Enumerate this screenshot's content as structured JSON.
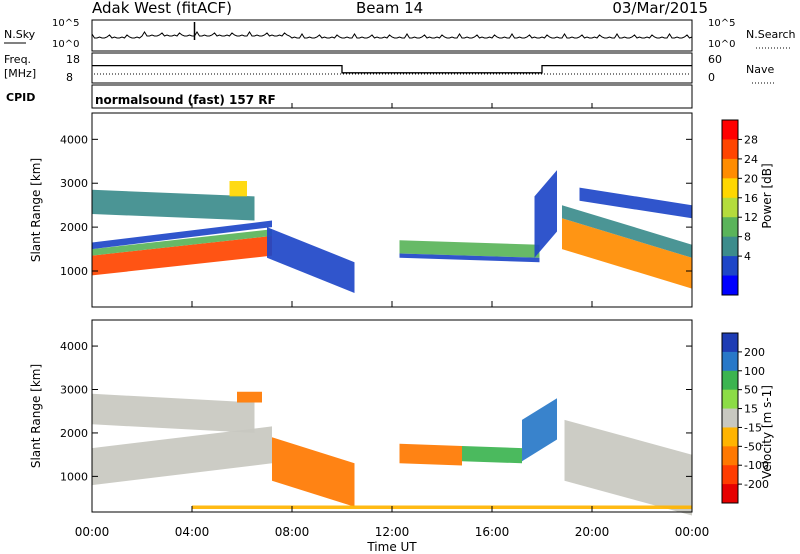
{
  "header": {
    "station": "Adak West (fitACF)",
    "beam": "Beam 14",
    "date": "03/Mar/2015"
  },
  "top_panels": {
    "nsky": {
      "label": "N.Sky",
      "y_ticks": [
        "10^5",
        "10^0"
      ],
      "right_label": "N.Search",
      "right_ticks": [
        "10^5",
        "10^0"
      ]
    },
    "freq": {
      "label_line1": "Freq.",
      "label_line2": "[MHz]",
      "y_ticks": [
        "18",
        "8"
      ],
      "right_label": "Nave",
      "right_ticks": [
        "60",
        "0"
      ],
      "steps": [
        {
          "from": 0.0,
          "to": 10.0,
          "level": 14
        },
        {
          "from": 10.0,
          "to": 18.0,
          "level": 11
        },
        {
          "from": 18.0,
          "to": 24.0,
          "level": 14
        }
      ]
    },
    "cpid": {
      "label": "CPID",
      "text": "normalsound (fast) 157 RF"
    }
  },
  "x_axis": {
    "label": "Time UT",
    "ticks": [
      "00:00",
      "04:00",
      "08:00",
      "12:00",
      "16:00",
      "20:00",
      "00:00"
    ],
    "range": [
      0,
      24
    ]
  },
  "power_scale": {
    "label": "Power [dB]",
    "ticks": [
      "28",
      "24",
      "20",
      "16",
      "12",
      "8",
      "4"
    ],
    "colors": [
      "#0000ff",
      "#1e46c8",
      "#3c8c8c",
      "#5ab45a",
      "#b4dc3c",
      "#ffd700",
      "#ff8c00",
      "#ff4500",
      "#ff0000"
    ]
  },
  "velocity_scale": {
    "label": "Velocity [m s-1]",
    "ticks": [
      "200",
      "100",
      "50",
      "15",
      "-15",
      "-50",
      "-100",
      "-200"
    ],
    "colors": [
      "#1e3cb4",
      "#2878c8",
      "#3cb450",
      "#8cdc46",
      "#c8c8c0",
      "#ffb400",
      "#ff7800",
      "#ff3c00",
      "#e60000"
    ]
  },
  "chart_data": [
    {
      "type": "heatmap",
      "name": "power",
      "xlabel": "",
      "ylabel": "Slant Range [km]",
      "y_ticks": [
        1000,
        2000,
        3000,
        4000
      ],
      "ylim": [
        180,
        4600
      ],
      "xlim": [
        0,
        24
      ],
      "regions": [
        {
          "t0": 0.0,
          "t1": 7.2,
          "r0": 900,
          "r1": 1350,
          "r1_end": 1800,
          "level": 28
        },
        {
          "t0": 0.0,
          "t1": 7.2,
          "r0": 1350,
          "r1": 1500,
          "r1_end": 1950,
          "level": 14
        },
        {
          "t0": 0.0,
          "t1": 7.2,
          "r0": 1500,
          "r1": 1650,
          "r1_end": 2150,
          "level": 6
        },
        {
          "t0": 0.0,
          "t1": 6.5,
          "r0": 2300,
          "r1": 2850,
          "r1_end": 2700,
          "level": 10
        },
        {
          "t0": 5.5,
          "t1": 6.2,
          "r0": 2700,
          "r1": 3050,
          "r1_end": 3050,
          "level": 20
        },
        {
          "t0": 7.0,
          "t1": 10.5,
          "r0": 1300,
          "r1": 2000,
          "r1_end": 1200,
          "level": 6
        },
        {
          "t0": 12.3,
          "t1": 17.9,
          "r0": 1400,
          "r1": 1700,
          "r1_end": 1600,
          "level": 14
        },
        {
          "t0": 12.3,
          "t1": 17.9,
          "r0": 1300,
          "r1": 1400,
          "r1_end": 1300,
          "level": 6
        },
        {
          "t0": 17.7,
          "t1": 18.6,
          "r0": 1300,
          "r1": 2700,
          "r1_end": 3300,
          "level": 6
        },
        {
          "t0": 18.8,
          "t1": 24.0,
          "r0": 1500,
          "r1": 2200,
          "r1_end": 1300,
          "level": 24
        },
        {
          "t0": 18.8,
          "t1": 24.0,
          "r0": 2200,
          "r1": 2500,
          "r1_end": 1600,
          "level": 8
        },
        {
          "t0": 19.5,
          "t1": 24.0,
          "r0": 2600,
          "r1": 2900,
          "r1_end": 2500,
          "level": 6
        }
      ]
    },
    {
      "type": "heatmap",
      "name": "velocity",
      "xlabel": "Time UT",
      "ylabel": "Slant Range [km]",
      "y_ticks": [
        1000,
        2000,
        3000,
        4000
      ],
      "ylim": [
        180,
        4600
      ],
      "xlim": [
        0,
        24
      ],
      "regions": [
        {
          "t0": 0.0,
          "t1": 7.2,
          "r0": 800,
          "r1": 1650,
          "r1_end": 2150,
          "level": 0
        },
        {
          "t0": 0.0,
          "t1": 6.5,
          "r0": 2200,
          "r1": 2900,
          "r1_end": 2700,
          "level": 0
        },
        {
          "t0": 5.8,
          "t1": 6.8,
          "r0": 2700,
          "r1": 2950,
          "r1_end": 2950,
          "level": -60
        },
        {
          "t0": 7.2,
          "t1": 10.5,
          "r0": 900,
          "r1": 1900,
          "r1_end": 1300,
          "level": -60
        },
        {
          "t0": 12.3,
          "t1": 14.8,
          "r0": 1300,
          "r1": 1750,
          "r1_end": 1700,
          "level": -90
        },
        {
          "t0": 14.8,
          "t1": 17.2,
          "r0": 1350,
          "r1": 1700,
          "r1_end": 1650,
          "level": 60
        },
        {
          "t0": 17.2,
          "t1": 18.6,
          "r0": 1350,
          "r1": 2300,
          "r1_end": 2800,
          "level": 150
        },
        {
          "t0": 18.9,
          "t1": 24.0,
          "r0": 900,
          "r1": 2300,
          "r1_end": 1500,
          "level": 0
        },
        {
          "t0": 4.0,
          "t1": 24.0,
          "r0": 250,
          "r1": 330,
          "r1_end": 330,
          "level": -40
        }
      ]
    }
  ]
}
